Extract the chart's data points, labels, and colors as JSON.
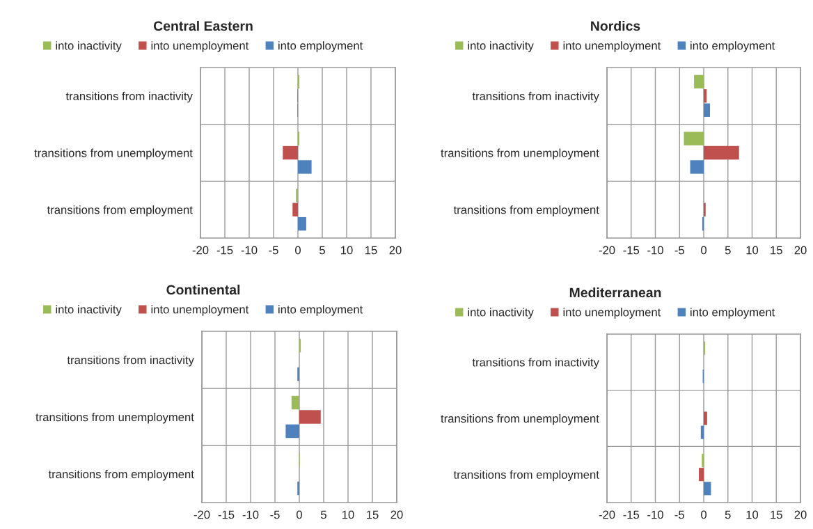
{
  "chart_data": [
    {
      "type": "bar",
      "orientation": "horizontal",
      "title": "Central Eastern",
      "categories": [
        "transitions from inactivity",
        "transitions from unemployment",
        "transitions from employment"
      ],
      "series": [
        {
          "name": "into inactivity",
          "color": "#9bbb59",
          "values": [
            0.3,
            0.3,
            -0.4
          ]
        },
        {
          "name": "into unemployment",
          "color": "#c0504d",
          "values": [
            -0.1,
            -3.1,
            -1.1
          ]
        },
        {
          "name": "into employment",
          "color": "#4f81bd",
          "values": [
            -0.1,
            2.8,
            1.7
          ]
        }
      ],
      "xlim": [
        -20,
        20
      ],
      "xticks": [
        -20,
        -15,
        -10,
        -5,
        0,
        5,
        10,
        15,
        20
      ],
      "grid": true,
      "legend": "top"
    },
    {
      "type": "bar",
      "orientation": "horizontal",
      "title": "Nordics",
      "categories": [
        "transitions from inactivity",
        "transitions from unemployment",
        "transitions from employment"
      ],
      "series": [
        {
          "name": "into inactivity",
          "color": "#9bbb59",
          "values": [
            -2.0,
            -4.1,
            0.1
          ]
        },
        {
          "name": "into unemployment",
          "color": "#c0504d",
          "values": [
            0.6,
            7.3,
            0.4
          ]
        },
        {
          "name": "into employment",
          "color": "#4f81bd",
          "values": [
            1.3,
            -2.8,
            -0.3
          ]
        }
      ],
      "xlim": [
        -20,
        20
      ],
      "xticks": [
        -20,
        -15,
        -10,
        -5,
        0,
        5,
        10,
        15,
        20
      ],
      "grid": true,
      "legend": "top"
    },
    {
      "type": "bar",
      "orientation": "horizontal",
      "title": "Continental",
      "categories": [
        "transitions from inactivity",
        "transitions from unemployment",
        "transitions from employment"
      ],
      "series": [
        {
          "name": "into inactivity",
          "color": "#9bbb59",
          "values": [
            0.3,
            -1.6,
            0.1
          ]
        },
        {
          "name": "into unemployment",
          "color": "#c0504d",
          "values": [
            null,
            4.4,
            null
          ]
        },
        {
          "name": "into employment",
          "color": "#4f81bd",
          "values": [
            -0.4,
            -2.8,
            -0.4
          ]
        }
      ],
      "xlim": [
        -20,
        20
      ],
      "xticks": [
        -20,
        -15,
        -10,
        -5,
        0,
        5,
        10,
        15,
        20
      ],
      "grid": true,
      "legend": "top"
    },
    {
      "type": "bar",
      "orientation": "horizontal",
      "title": "Mediterranean",
      "categories": [
        "transitions from inactivity",
        "transitions from unemployment",
        "transitions from employment"
      ],
      "series": [
        {
          "name": "into inactivity",
          "color": "#9bbb59",
          "values": [
            0.3,
            0.1,
            -0.4
          ]
        },
        {
          "name": "into unemployment",
          "color": "#c0504d",
          "values": [
            null,
            0.7,
            -1.0
          ]
        },
        {
          "name": "into employment",
          "color": "#4f81bd",
          "values": [
            -0.2,
            -0.6,
            1.5
          ]
        }
      ],
      "xlim": [
        -20,
        20
      ],
      "xticks": [
        -20,
        -15,
        -10,
        -5,
        0,
        5,
        10,
        15,
        20
      ],
      "grid": true,
      "legend": "top"
    }
  ]
}
